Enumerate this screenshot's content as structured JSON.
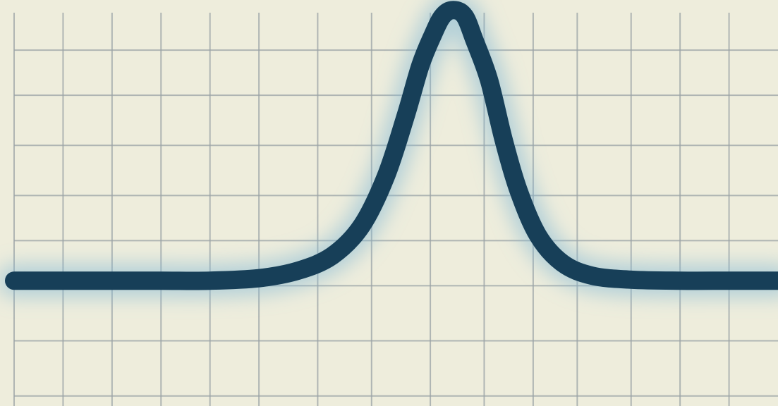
{
  "colors": {
    "background": "#eeeddc",
    "grid": "#9aa3a6",
    "line": "#173f58",
    "glow": "#7fb6d6"
  },
  "chart_data": {
    "type": "line",
    "title": "",
    "xlabel": "",
    "ylabel": "",
    "grid": true,
    "legend": "none",
    "xlim": [
      0,
      15.6
    ],
    "ylim": [
      0,
      8.1
    ],
    "x_ticks": [
      0,
      1,
      2,
      3,
      4,
      5,
      6.2,
      7.3,
      8.5,
      9.6,
      10.6,
      11.5,
      12.6,
      13.6,
      14.6
    ],
    "y_ticks": [
      0.2,
      1.3,
      2.4,
      3.3,
      4.2,
      5.2,
      6.2,
      7.1
    ],
    "series": [
      {
        "values": [
          [
            0,
            2.5
          ],
          [
            1,
            2.5
          ],
          [
            2,
            2.5
          ],
          [
            3,
            2.5
          ],
          [
            4,
            2.5
          ],
          [
            5,
            2.55
          ],
          [
            5.8,
            2.7
          ],
          [
            6.5,
            3.0
          ],
          [
            7.1,
            3.6
          ],
          [
            7.6,
            4.6
          ],
          [
            8.0,
            5.8
          ],
          [
            8.3,
            6.8
          ],
          [
            8.55,
            7.4
          ],
          [
            8.75,
            7.78
          ],
          [
            8.97,
            7.9
          ],
          [
            9.2,
            7.78
          ],
          [
            9.4,
            7.3
          ],
          [
            9.7,
            6.5
          ],
          [
            10.0,
            5.3
          ],
          [
            10.3,
            4.3
          ],
          [
            10.7,
            3.4
          ],
          [
            11.2,
            2.85
          ],
          [
            11.8,
            2.6
          ],
          [
            12.6,
            2.52
          ],
          [
            13.6,
            2.5
          ],
          [
            14.6,
            2.5
          ],
          [
            15.6,
            2.5
          ]
        ]
      }
    ]
  }
}
